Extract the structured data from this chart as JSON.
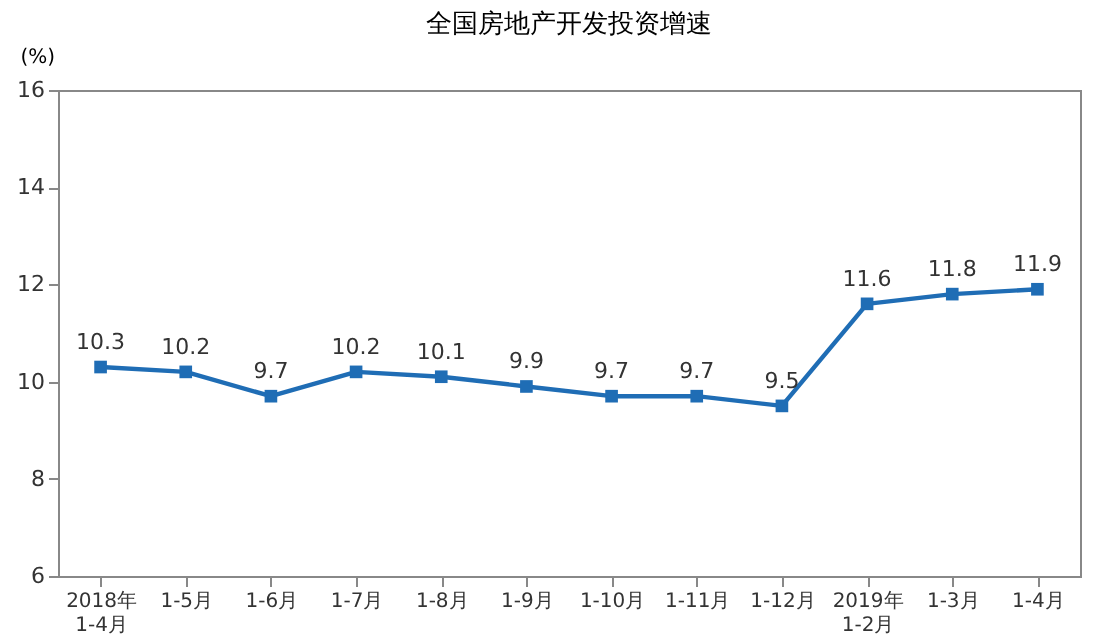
{
  "chart_data": {
    "type": "line",
    "title": "全国房地产开发投资增速",
    "ylabel": "(%)",
    "categories": [
      "2018年\n1-4月",
      "1-5月",
      "1-6月",
      "1-7月",
      "1-8月",
      "1-9月",
      "1-10月",
      "1-11月",
      "1-12月",
      "2019年\n1-2月",
      "1-3月",
      "1-4月"
    ],
    "series": [
      {
        "color": "#1f6db5",
        "values": [
          10.3,
          10.2,
          9.7,
          10.2,
          10.1,
          9.9,
          9.7,
          9.7,
          9.5,
          11.6,
          11.8,
          11.9
        ]
      }
    ],
    "ylim": [
      6,
      16
    ],
    "yticks": [
      6,
      8,
      10,
      12,
      14,
      16
    ],
    "grid": false,
    "legend": false,
    "marker": "square",
    "line_style": "solid",
    "data_labels": true
  }
}
